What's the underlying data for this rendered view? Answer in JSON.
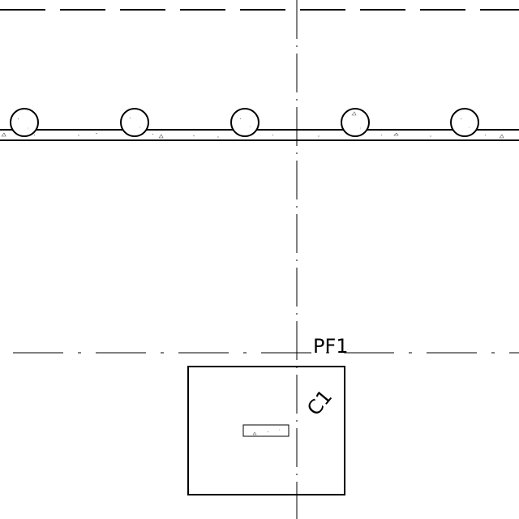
{
  "drawing": {
    "footing_label": "PF1",
    "column_label": "C1"
  },
  "colors": {
    "background": "#ffffff",
    "linework": "#000000"
  }
}
